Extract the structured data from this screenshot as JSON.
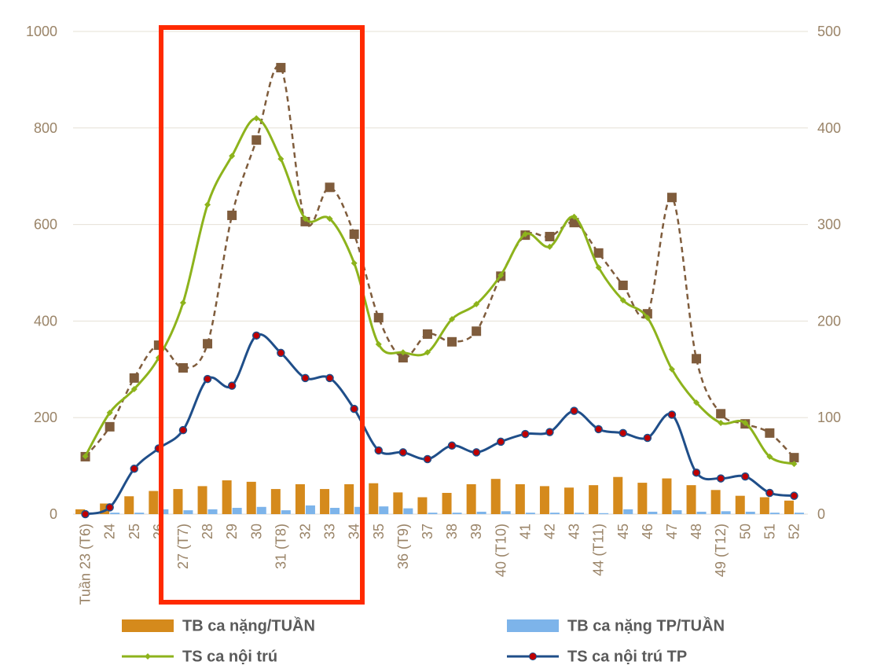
{
  "chart_data": {
    "type": "bar_line",
    "categories": [
      "Tuần 23 (T6)",
      "24",
      "25",
      "26",
      "27 (T7)",
      "28",
      "29",
      "30",
      "31 (T8)",
      "32",
      "33",
      "34",
      "35",
      "36 (T9)",
      "37",
      "38",
      "39",
      "40 (T10)",
      "41",
      "42",
      "43",
      "44 (T11)",
      "45",
      "46",
      "47",
      "48",
      "49 (T12)",
      "50",
      "51",
      "52"
    ],
    "ylim": [
      0,
      1000
    ],
    "yticks": [
      0,
      200,
      400,
      600,
      800,
      1000
    ],
    "y2lim": [
      0,
      500
    ],
    "y2ticks": [
      0,
      100,
      200,
      300,
      400,
      500
    ],
    "series": [
      {
        "name": "TB ca nặng/TUẦN",
        "type": "bar",
        "color": "#d58a1c",
        "values": [
          10,
          22,
          37,
          48,
          52,
          58,
          70,
          67,
          52,
          62,
          52,
          62,
          64,
          45,
          35,
          44,
          62,
          73,
          62,
          58,
          55,
          60,
          77,
          65,
          74,
          60,
          50,
          38,
          35,
          28
        ]
      },
      {
        "name": "TB ca nặng TP/TUẦN",
        "type": "bar",
        "color": "#7db4ea",
        "values": [
          2,
          3,
          3,
          10,
          8,
          10,
          13,
          15,
          8,
          18,
          13,
          15,
          16,
          12,
          3,
          3,
          5,
          6,
          3,
          3,
          3,
          2,
          10,
          5,
          8,
          5,
          6,
          5,
          3,
          3
        ]
      },
      {
        "type": "line",
        "color": "#7f5c3c",
        "dashed": true,
        "marker": "square",
        "values": [
          119,
          181,
          282,
          350,
          303,
          353,
          619,
          775,
          925,
          606,
          677,
          580,
          407,
          324,
          373,
          357,
          379,
          493,
          578,
          575,
          604,
          541,
          474,
          415,
          656,
          322,
          208,
          187,
          168,
          117
        ]
      },
      {
        "name": "TS ca nội trú",
        "type": "line",
        "color": "#8db31c",
        "marker": "diamond",
        "values": [
          120,
          210,
          259,
          324,
          438,
          641,
          742,
          820,
          736,
          612,
          612,
          520,
          352,
          335,
          335,
          404,
          435,
          495,
          580,
          554,
          616,
          511,
          443,
          407,
          300,
          231,
          189,
          189,
          119,
          104
        ]
      },
      {
        "name": "TS ca nội trú TP",
        "type": "line",
        "axis": "y2",
        "color": "#1f4e89",
        "marker": "circle",
        "values": [
          0,
          7,
          47,
          68,
          87,
          140,
          133,
          185,
          167,
          141,
          141,
          109,
          66,
          64,
          57,
          71,
          64,
          75,
          83,
          85,
          107,
          88,
          84,
          79,
          103,
          43,
          37,
          39,
          22,
          19
        ]
      }
    ]
  }
}
